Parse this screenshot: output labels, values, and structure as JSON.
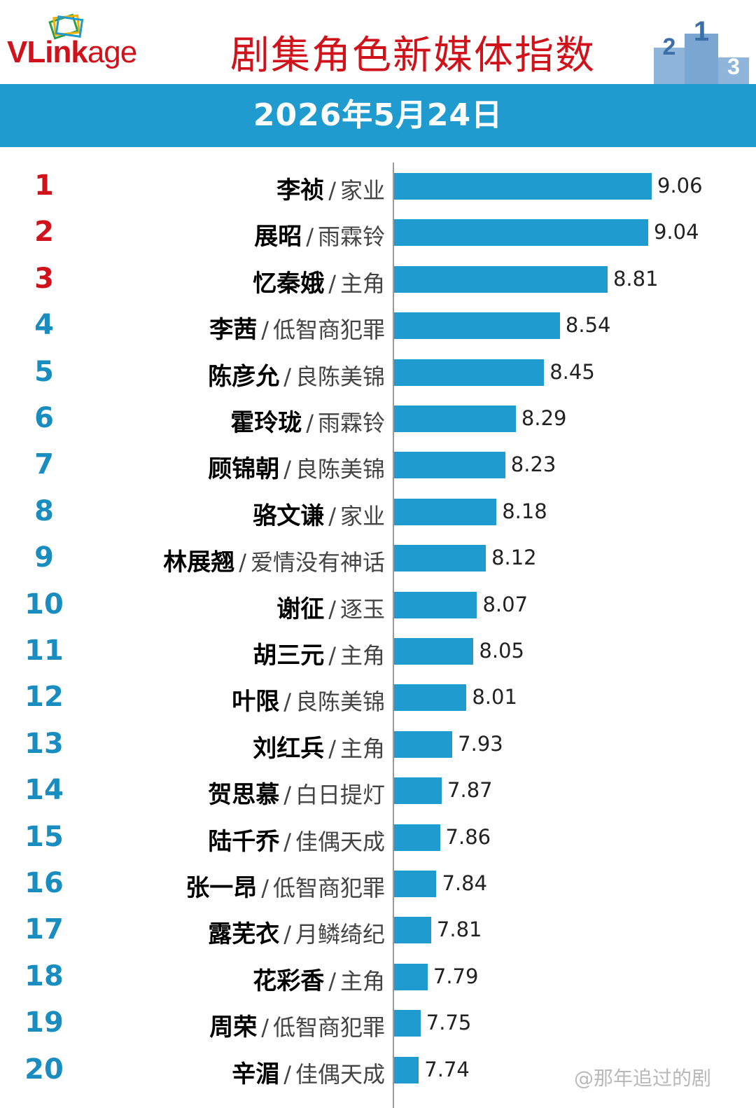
{
  "logo": {
    "text_v": "V",
    "text_link": "Link",
    "text_age": "age",
    "icon": "vlinkage-frames-logo"
  },
  "header": {
    "title": "剧集角色新媒体指数",
    "podium_icon": "podium-icon",
    "podium_labels": [
      "2",
      "1",
      "3"
    ]
  },
  "date_label": "2026年5月24日",
  "colors": {
    "bar": "#1f9bd0",
    "header_band": "#1f9bd0",
    "title_red": "#d0121b",
    "rank_top": "#d0121b",
    "rank_rest": "#1a8dc0"
  },
  "chart_data": {
    "type": "bar",
    "orientation": "horizontal",
    "title": "剧集角色新媒体指数",
    "subtitle": "2026年5月24日",
    "xlabel": "",
    "ylabel": "",
    "xlim": [
      7.6,
      9.2
    ],
    "grid": false,
    "legend": "none",
    "items": [
      {
        "rank": "1",
        "name": "李祯",
        "drama": "家业",
        "value": 9.06
      },
      {
        "rank": "2",
        "name": "展昭",
        "drama": "雨霖铃",
        "value": 9.04
      },
      {
        "rank": "3",
        "name": "忆秦娥",
        "drama": "主角",
        "value": 8.81
      },
      {
        "rank": "4",
        "name": "李茜",
        "drama": "低智商犯罪",
        "value": 8.54
      },
      {
        "rank": "5",
        "name": "陈彦允",
        "drama": "良陈美锦",
        "value": 8.45
      },
      {
        "rank": "6",
        "name": "霍玲珑",
        "drama": "雨霖铃",
        "value": 8.29
      },
      {
        "rank": "7",
        "name": "顾锦朝",
        "drama": "良陈美锦",
        "value": 8.23
      },
      {
        "rank": "8",
        "name": "骆文谦",
        "drama": "家业",
        "value": 8.18
      },
      {
        "rank": "9",
        "name": "林展翘",
        "drama": "爱情没有神话",
        "value": 8.12
      },
      {
        "rank": "10",
        "name": "谢征",
        "drama": "逐玉",
        "value": 8.07
      },
      {
        "rank": "11",
        "name": "胡三元",
        "drama": "主角",
        "value": 8.05
      },
      {
        "rank": "12",
        "name": "叶限",
        "drama": "良陈美锦",
        "value": 8.01
      },
      {
        "rank": "13",
        "name": "刘红兵",
        "drama": "主角",
        "value": 7.93
      },
      {
        "rank": "14",
        "name": "贺思慕",
        "drama": "白日提灯",
        "value": 7.87
      },
      {
        "rank": "15",
        "name": "陆千乔",
        "drama": "佳偶天成",
        "value": 7.86
      },
      {
        "rank": "16",
        "name": "张一昂",
        "drama": "低智商犯罪",
        "value": 7.84
      },
      {
        "rank": "17",
        "name": "露芜衣",
        "drama": "月鳞绮纪",
        "value": 7.81
      },
      {
        "rank": "18",
        "name": "花彩香",
        "drama": "主角",
        "value": 7.79
      },
      {
        "rank": "19",
        "name": "周荣",
        "drama": "低智商犯罪",
        "value": 7.75
      },
      {
        "rank": "20",
        "name": "辛湄",
        "drama": "佳偶天成",
        "value": 7.74
      }
    ]
  },
  "watermark": "@那年追过的剧"
}
